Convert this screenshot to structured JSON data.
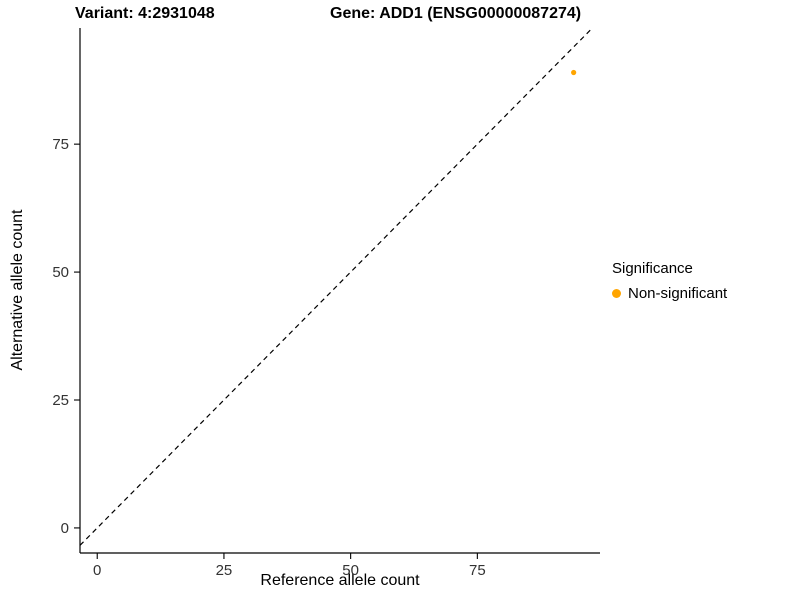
{
  "chart_data": {
    "type": "scatter",
    "title_left": "Variant: 4:2931048",
    "title_right": "Gene: ADD1 (ENSG00000087274)",
    "xlabel": "Reference allele count",
    "ylabel": "Alternative allele count",
    "xlim": [
      -3.4,
      99.2
    ],
    "ylim": [
      -4.9,
      97.7
    ],
    "xticks": [
      0,
      25,
      50,
      75
    ],
    "yticks": [
      0,
      25,
      50,
      75
    ],
    "grid": false,
    "identity_line": {
      "type": "abline",
      "slope": 1,
      "intercept": 0,
      "style": "dashed",
      "color": "#000000"
    },
    "series": [
      {
        "name": "Non-significant",
        "color": "#FFA500",
        "points": [
          {
            "x": 94,
            "y": 89
          }
        ]
      }
    ],
    "legend": {
      "title": "Significance",
      "position": "right",
      "items": [
        {
          "label": "Non-significant",
          "color": "#FFA500"
        }
      ]
    },
    "axis_color": "#000000",
    "tick_label_color": "#333333"
  }
}
